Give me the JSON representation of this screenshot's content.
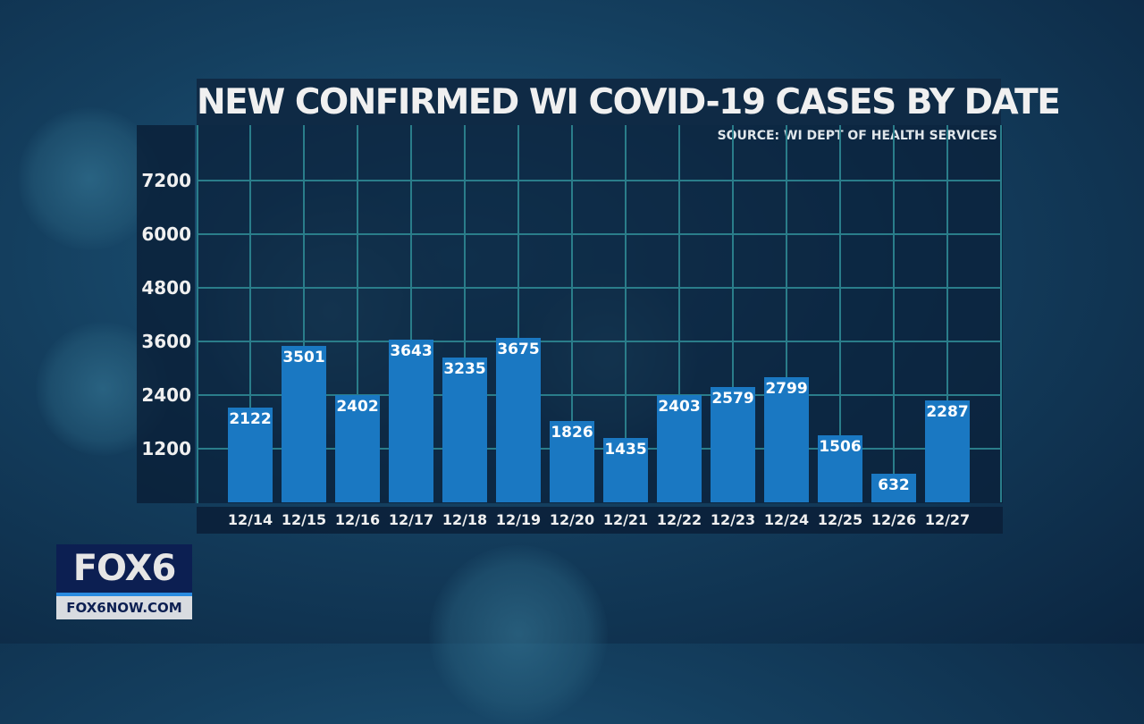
{
  "chart_data": {
    "type": "bar",
    "title": "NEW CONFIRMED WI COVID-19 CASES BY DATE",
    "source": "SOURCE: WI DEPT OF HEALTH SERVICES",
    "categories": [
      "12/14",
      "12/15",
      "12/16",
      "12/17",
      "12/18",
      "12/19",
      "12/20",
      "12/21",
      "12/22",
      "12/23",
      "12/24",
      "12/25",
      "12/26",
      "12/27"
    ],
    "values": [
      2122,
      3501,
      2402,
      3643,
      3235,
      3675,
      1826,
      1435,
      2403,
      2579,
      2799,
      1506,
      632,
      2287
    ],
    "yticks": [
      "1200",
      "2400",
      "3600",
      "4800",
      "6000",
      "7200"
    ],
    "ylim": [
      0,
      8400
    ],
    "grid": true,
    "bar_color": "#1a78c2"
  },
  "logo": {
    "name": "FOX6",
    "url": "FOX6NOW.COM"
  }
}
